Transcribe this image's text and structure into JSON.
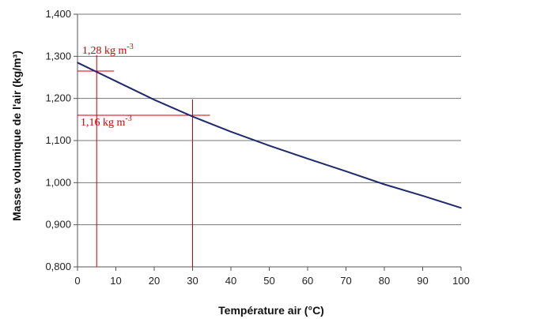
{
  "chart_data": {
    "type": "line",
    "xlabel": "Température air (°C)",
    "ylabel": "Masse volumique de l'air (kg/m³)",
    "xlim": [
      0,
      100
    ],
    "ylim": [
      0.8,
      1.4
    ],
    "x_ticks": [
      "0",
      "10",
      "20",
      "30",
      "40",
      "50",
      "60",
      "70",
      "80",
      "90",
      "100"
    ],
    "y_ticks": [
      "0,800",
      "0,900",
      "1,000",
      "1,100",
      "1,200",
      "1,300",
      "1,400"
    ],
    "grid": "horizontal",
    "series": [
      {
        "color": "#1f2a6b",
        "x": [
          0,
          10,
          20,
          30,
          40,
          50,
          60,
          70,
          80,
          90,
          100
        ],
        "y": [
          1.285,
          1.241,
          1.197,
          1.157,
          1.121,
          1.088,
          1.057,
          1.027,
          0.996,
          0.969,
          0.94
        ]
      }
    ],
    "annotations": [
      {
        "text_main": "1,28 kg m",
        "text_sup": "-3",
        "x": 5,
        "y": 1.265,
        "color": "#cc0000"
      },
      {
        "text_main": "1,16 kg m",
        "text_sup": "-3",
        "x": 30,
        "y": 1.16,
        "color": "#cc0000"
      }
    ]
  }
}
